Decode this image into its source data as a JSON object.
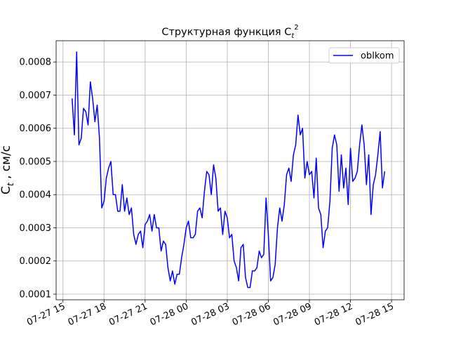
{
  "chart_data": {
    "type": "line",
    "title": {
      "text": "Структурная функция C",
      "sub": "t",
      "sup": "2"
    },
    "ylabel": {
      "text": "C",
      "sub": "t",
      "rest": " , см/с"
    },
    "x": [
      "07-27 15:40",
      "07-27 15:50",
      "07-27 16:00",
      "07-27 16:10",
      "07-27 16:20",
      "07-27 16:30",
      "07-27 16:40",
      "07-27 16:50",
      "07-27 17:00",
      "07-27 17:10",
      "07-27 17:20",
      "07-27 17:30",
      "07-27 17:40",
      "07-27 17:50",
      "07-27 18:00",
      "07-27 18:10",
      "07-27 18:20",
      "07-27 18:30",
      "07-27 18:40",
      "07-27 18:50",
      "07-27 19:00",
      "07-27 19:10",
      "07-27 19:20",
      "07-27 19:30",
      "07-27 19:40",
      "07-27 19:50",
      "07-27 20:00",
      "07-27 20:10",
      "07-27 20:20",
      "07-27 20:30",
      "07-27 20:40",
      "07-27 20:50",
      "07-27 21:00",
      "07-27 21:10",
      "07-27 21:20",
      "07-27 21:30",
      "07-27 21:40",
      "07-27 21:50",
      "07-27 22:00",
      "07-27 22:10",
      "07-27 22:20",
      "07-27 22:30",
      "07-27 22:40",
      "07-27 22:50",
      "07-27 23:00",
      "07-27 23:10",
      "07-27 23:20",
      "07-27 23:30",
      "07-27 23:40",
      "07-27 23:50",
      "07-28 00:00",
      "07-28 00:10",
      "07-28 00:20",
      "07-28 00:30",
      "07-28 00:40",
      "07-28 00:50",
      "07-28 01:00",
      "07-28 01:10",
      "07-28 01:20",
      "07-28 01:30",
      "07-28 01:40",
      "07-28 01:50",
      "07-28 02:00",
      "07-28 02:10",
      "07-28 02:20",
      "07-28 02:30",
      "07-28 02:40",
      "07-28 02:50",
      "07-28 03:00",
      "07-28 03:10",
      "07-28 03:20",
      "07-28 03:30",
      "07-28 03:40",
      "07-28 03:50",
      "07-28 04:00",
      "07-28 04:10",
      "07-28 04:20",
      "07-28 04:30",
      "07-28 04:40",
      "07-28 04:50",
      "07-28 05:00",
      "07-28 05:10",
      "07-28 05:20",
      "07-28 05:30",
      "07-28 05:40",
      "07-28 05:50",
      "07-28 06:00",
      "07-28 06:10",
      "07-28 06:20",
      "07-28 06:30",
      "07-28 06:40",
      "07-28 06:50",
      "07-28 07:00",
      "07-28 07:10",
      "07-28 07:20",
      "07-28 07:30",
      "07-28 07:40",
      "07-28 07:50",
      "07-28 08:00",
      "07-28 08:10",
      "07-28 08:20",
      "07-28 08:30",
      "07-28 08:40",
      "07-28 08:50",
      "07-28 09:00",
      "07-28 09:10",
      "07-28 09:20",
      "07-28 09:30",
      "07-28 09:40",
      "07-28 09:50",
      "07-28 10:00",
      "07-28 10:10",
      "07-28 10:20",
      "07-28 10:30",
      "07-28 10:40",
      "07-28 10:50",
      "07-28 11:00",
      "07-28 11:10",
      "07-28 11:20",
      "07-28 11:30",
      "07-28 11:40",
      "07-28 11:50",
      "07-28 12:00",
      "07-28 12:10",
      "07-28 12:20",
      "07-28 12:30",
      "07-28 12:40",
      "07-28 12:50",
      "07-28 13:00",
      "07-28 13:10",
      "07-28 13:20",
      "07-28 13:30",
      "07-28 13:40",
      "07-28 13:50",
      "07-28 14:00",
      "07-28 14:10",
      "07-28 14:20",
      "07-28 14:30"
    ],
    "series": [
      {
        "name": "oblkom",
        "color": "#0000ff",
        "values": [
          0.00069,
          0.00058,
          0.00083,
          0.00055,
          0.00057,
          0.00066,
          0.00065,
          0.00061,
          0.00074,
          0.00069,
          0.00062,
          0.00067,
          0.00057,
          0.00036,
          0.00038,
          0.00045,
          0.00048,
          0.0005,
          0.0004,
          0.0004,
          0.00035,
          0.00035,
          0.00043,
          0.00035,
          0.00039,
          0.00034,
          0.00036,
          0.00028,
          0.00025,
          0.00028,
          0.00029,
          0.00024,
          0.00031,
          0.00032,
          0.00034,
          0.00029,
          0.00034,
          0.0003,
          0.0003,
          0.00023,
          0.00026,
          0.00025,
          0.00018,
          0.00014,
          0.00017,
          0.00013,
          0.00016,
          0.00016,
          0.00021,
          0.00025,
          0.0003,
          0.00032,
          0.00027,
          0.00027,
          0.00028,
          0.00035,
          0.00036,
          0.00033,
          0.00041,
          0.00047,
          0.00046,
          0.0004,
          0.00049,
          0.00045,
          0.00035,
          0.00036,
          0.00028,
          0.00035,
          0.00033,
          0.00027,
          0.00028,
          0.0002,
          0.00018,
          0.00014,
          0.00024,
          0.00025,
          0.00015,
          0.00012,
          0.00012,
          0.00017,
          0.00017,
          0.00018,
          0.00023,
          0.00021,
          0.00022,
          0.00039,
          0.00028,
          0.00014,
          0.00015,
          0.00019,
          0.0003,
          0.00036,
          0.00032,
          0.00037,
          0.00046,
          0.00048,
          0.00044,
          0.00052,
          0.00055,
          0.00064,
          0.00058,
          0.0006,
          0.00045,
          0.0005,
          0.00046,
          0.00047,
          0.00039,
          0.00051,
          0.00036,
          0.00034,
          0.00024,
          0.00029,
          0.0003,
          0.00038,
          0.00054,
          0.00058,
          0.00055,
          0.00041,
          0.00052,
          0.00042,
          0.00048,
          0.00037,
          0.00054,
          0.00044,
          0.00045,
          0.00047,
          0.00055,
          0.00061,
          0.00055,
          0.00043,
          0.00052,
          0.00034,
          0.00043,
          0.00046,
          0.00052,
          0.00059,
          0.00042,
          0.00047
        ]
      }
    ],
    "xlim": [
      "07-27 14:30",
      "07-28 15:55"
    ],
    "xticks": [
      "07-27 15",
      "07-27 18",
      "07-27 21",
      "07-28 00",
      "07-28 03",
      "07-28 06",
      "07-28 09",
      "07-28 12",
      "07-28 15"
    ],
    "ylim": [
      8.3e-05,
      0.000864
    ],
    "yticks": [
      0.0001,
      0.0002,
      0.0003,
      0.0004,
      0.0005,
      0.0006,
      0.0007,
      0.0008
    ],
    "grid": true,
    "legend": "upper right"
  }
}
